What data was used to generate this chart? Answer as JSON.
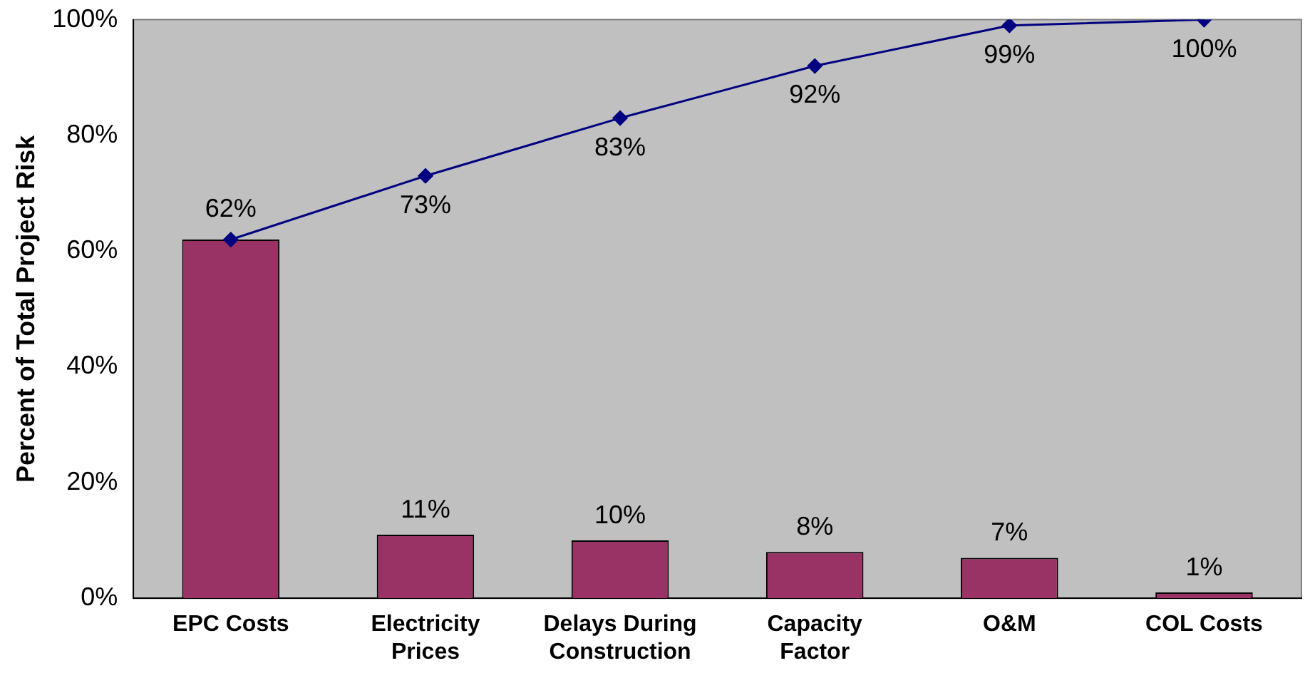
{
  "chart_data": {
    "type": "bar",
    "ylabel": "Percent of Total Project Risk",
    "categories": [
      "EPC Costs",
      "Electricity Prices",
      "Delays During Construction",
      "Capacity Factor",
      "O&M",
      "COL Costs"
    ],
    "series": [
      {
        "color": "#993366",
        "values": [
          62,
          11,
          10,
          8,
          7,
          1
        ]
      },
      {
        "type": "line",
        "color": "#000080",
        "values": [
          62,
          73,
          83,
          92,
          99,
          100
        ],
        "marker": "diamond"
      }
    ],
    "ylim": [
      0,
      100
    ],
    "yticks": [
      {
        "value": 0,
        "label": "0%"
      },
      {
        "value": 20,
        "label": "20%"
      },
      {
        "value": 40,
        "label": "40%"
      },
      {
        "value": 60,
        "label": "60%"
      },
      {
        "value": 80,
        "label": "80%"
      },
      {
        "value": 100,
        "label": "100%"
      }
    ],
    "value_labels": [
      [
        "62%",
        "11%",
        "10%",
        "8%",
        "7%",
        "1%"
      ],
      [
        null,
        "73%",
        "83%",
        "92%",
        "99%",
        "100%"
      ]
    ],
    "grid": false,
    "legend": false
  }
}
